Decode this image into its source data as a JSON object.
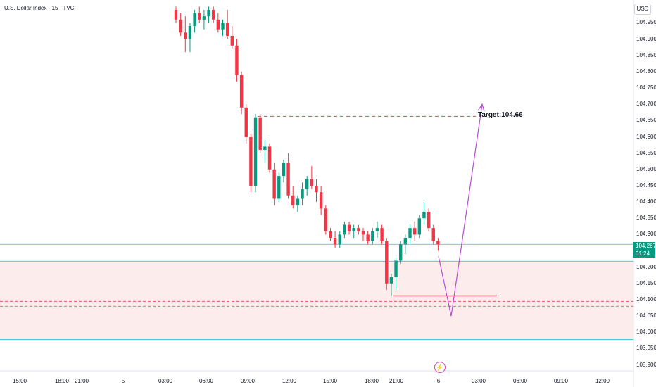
{
  "header": {
    "title": "U.S. Dollar Index · 15 · TVC",
    "currency": "USD"
  },
  "price_axis": {
    "ticks": [
      "104.950",
      "104.900",
      "104.850",
      "104.800",
      "104.750",
      "104.700",
      "104.650",
      "104.600",
      "104.550",
      "104.500",
      "104.450",
      "104.400",
      "104.350",
      "104.300",
      "104.200",
      "104.150",
      "104.100",
      "104.050",
      "104.000",
      "103.950",
      "103.900"
    ]
  },
  "time_axis": {
    "ticks": [
      "15:00",
      "18:00",
      "21:00",
      "5",
      "03:00",
      "06:00",
      "09:00",
      "12:00",
      "15:00",
      "18:00",
      "21:00",
      "6",
      "03:00",
      "06:00",
      "09:00",
      "12:00"
    ]
  },
  "current_price": {
    "value": "104.267",
    "countdown": "01:24",
    "color": "#089981"
  },
  "annotations": {
    "target_label": "Target:104.66",
    "target_value": 104.663
  },
  "zone": {
    "top": 104.218,
    "bottom": 103.978,
    "resistance_line": 104.27,
    "support_line": 104.112,
    "dashed_1": 104.095,
    "dashed_2": 104.08
  },
  "projection": {
    "low": 104.05,
    "high": 104.7
  },
  "icons": {
    "event": "lightning-icon"
  },
  "colors": {
    "up": "#089981",
    "down": "#f23645",
    "zone_fill": "#fdecec",
    "zone_line": "#4dc9d6",
    "projection": "#b34fd1"
  },
  "chart_data": {
    "type": "candlestick",
    "symbol": "U.S. Dollar Index",
    "interval": "15",
    "ylim": [
      103.9,
      104.98
    ],
    "candles": [
      [
        104.99,
        105.0,
        104.95,
        104.96
      ],
      [
        104.96,
        104.98,
        104.91,
        104.92
      ],
      [
        104.92,
        104.97,
        104.86,
        104.9
      ],
      [
        104.9,
        104.95,
        104.86,
        104.94
      ],
      [
        104.94,
        104.99,
        104.92,
        104.98
      ],
      [
        104.98,
        105.0,
        104.95,
        104.96
      ],
      [
        104.96,
        104.99,
        104.93,
        104.97
      ],
      [
        104.97,
        105.0,
        104.95,
        104.99
      ],
      [
        104.99,
        105.0,
        104.95,
        104.96
      ],
      [
        104.96,
        104.98,
        104.92,
        104.93
      ],
      [
        104.93,
        104.96,
        104.91,
        104.95
      ],
      [
        104.95,
        104.99,
        104.9,
        104.91
      ],
      [
        104.91,
        104.94,
        104.87,
        104.88
      ],
      [
        104.88,
        104.9,
        104.77,
        104.79
      ],
      [
        104.79,
        104.8,
        104.67,
        104.69
      ],
      [
        104.69,
        104.7,
        104.58,
        104.6
      ],
      [
        104.6,
        104.61,
        104.43,
        104.45
      ],
      [
        104.45,
        104.67,
        104.43,
        104.66
      ],
      [
        104.66,
        104.67,
        104.55,
        104.56
      ],
      [
        104.56,
        104.59,
        104.52,
        104.57
      ],
      [
        104.57,
        104.58,
        104.49,
        104.5
      ],
      [
        104.5,
        104.52,
        104.39,
        104.41
      ],
      [
        104.41,
        104.49,
        104.4,
        104.48
      ],
      [
        104.48,
        104.53,
        104.46,
        104.52
      ],
      [
        104.52,
        104.55,
        104.41,
        104.42
      ],
      [
        104.42,
        104.45,
        104.38,
        104.39
      ],
      [
        104.39,
        104.42,
        104.37,
        104.41
      ],
      [
        104.41,
        104.46,
        104.39,
        104.44
      ],
      [
        104.44,
        104.48,
        104.42,
        104.47
      ],
      [
        104.47,
        104.51,
        104.44,
        104.45
      ],
      [
        104.45,
        104.47,
        104.4,
        104.43
      ],
      [
        104.43,
        104.45,
        104.36,
        104.38
      ],
      [
        104.38,
        104.39,
        104.3,
        104.31
      ],
      [
        104.31,
        104.32,
        104.28,
        104.29
      ],
      [
        104.29,
        104.31,
        104.26,
        104.27
      ],
      [
        104.27,
        104.31,
        104.26,
        104.3
      ],
      [
        104.3,
        104.34,
        104.29,
        104.33
      ],
      [
        104.33,
        104.34,
        104.3,
        104.31
      ],
      [
        104.31,
        104.33,
        104.29,
        104.32
      ],
      [
        104.32,
        104.33,
        104.3,
        104.31
      ],
      [
        104.31,
        104.32,
        104.28,
        104.3
      ],
      [
        104.3,
        104.31,
        104.27,
        104.28
      ],
      [
        104.28,
        104.32,
        104.27,
        104.31
      ],
      [
        104.31,
        104.34,
        104.29,
        104.32
      ],
      [
        104.32,
        104.33,
        104.27,
        104.28
      ],
      [
        104.28,
        104.29,
        104.13,
        104.15
      ],
      [
        104.15,
        104.18,
        104.11,
        104.17
      ],
      [
        104.17,
        104.23,
        104.13,
        104.22
      ],
      [
        104.22,
        104.28,
        104.21,
        104.27
      ],
      [
        104.27,
        104.3,
        104.24,
        104.29
      ],
      [
        104.29,
        104.33,
        104.27,
        104.32
      ],
      [
        104.32,
        104.34,
        104.28,
        104.3
      ],
      [
        104.3,
        104.36,
        104.29,
        104.35
      ],
      [
        104.35,
        104.4,
        104.33,
        104.37
      ],
      [
        104.37,
        104.38,
        104.31,
        104.32
      ],
      [
        104.32,
        104.33,
        104.27,
        104.28
      ],
      [
        104.28,
        104.29,
        104.25,
        104.27
      ]
    ]
  }
}
